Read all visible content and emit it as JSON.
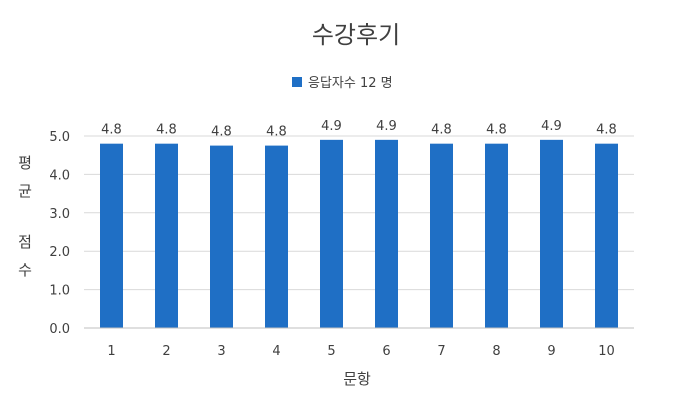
{
  "chart_data": {
    "type": "bar",
    "title": "수강후기",
    "legend": [
      "응답자수 12 명"
    ],
    "categories": [
      "1",
      "2",
      "3",
      "4",
      "5",
      "6",
      "7",
      "8",
      "9",
      "10"
    ],
    "series": [
      {
        "name": "응답자수 12 명",
        "values": [
          4.8,
          4.8,
          4.75,
          4.75,
          4.9,
          4.9,
          4.8,
          4.8,
          4.9,
          4.8
        ],
        "labels": [
          "4.8",
          "4.8",
          "4.8",
          "4.8",
          "4.9",
          "4.9",
          "4.8",
          "4.8",
          "4.9",
          "4.8"
        ]
      }
    ],
    "xlabel": "문항",
    "ylabel": [
      "평",
      "균",
      "점",
      "수"
    ],
    "ylim": [
      0,
      5
    ],
    "yticks": [
      "0.0",
      "1.0",
      "2.0",
      "3.0",
      "4.0",
      "5.0"
    ],
    "grid": true,
    "legend_position": "top-center",
    "colors": {
      "bar": "#1F6FC5",
      "grid": "#d9d9d9",
      "text": "#404040"
    }
  }
}
